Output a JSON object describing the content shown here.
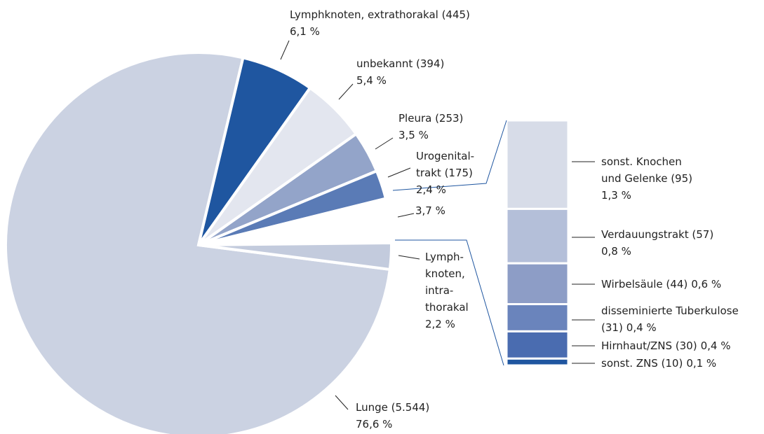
{
  "chart_data": [
    {
      "type": "pie",
      "categories": [
        "Lunge (5.544)",
        "Lymphknoten, extrathorakal (445)",
        "unbekannt (394)",
        "Pleura (253)",
        "Urogenital-\ntrakt (175)",
        null,
        "Lymph-\nknoten,\nintra-\nthorakal"
      ],
      "values": [
        76.6,
        6.1,
        5.4,
        3.5,
        2.4,
        3.7,
        2.2
      ],
      "value_labels": [
        "76,6 %",
        "6,1 %",
        "5,4 %",
        "3,5 %",
        "2,4 %",
        "3,7 %",
        "2,2 %"
      ],
      "colors": [
        "#cbd2e2",
        "#1f56a0",
        "#e3e6ef",
        "#93a4c9",
        "#5a7bb6",
        "#ffffff",
        "#c3cbdd"
      ]
    },
    {
      "type": "bar",
      "categories": [
        "sonst. Knochen\nund Gelenke (95)",
        "Verdauungstrakt (57)",
        "Wirbelsäule (44)",
        "disseminierte Tuberkulose\n(31)",
        "Hirnhaut/ZNS (30)",
        "sonst. ZNS (10)"
      ],
      "values": [
        1.3,
        0.8,
        0.6,
        0.4,
        0.4,
        0.1
      ],
      "value_labels": [
        "1,3 %",
        "0,8 %",
        "0,6 %",
        "0,4 %",
        "0,4 %",
        "0,1 %"
      ],
      "colors": [
        "#d7dce8",
        "#b4bfd9",
        "#8d9dc6",
        "#6a84bc",
        "#4a6cb0",
        "#1f56a0"
      ]
    }
  ]
}
